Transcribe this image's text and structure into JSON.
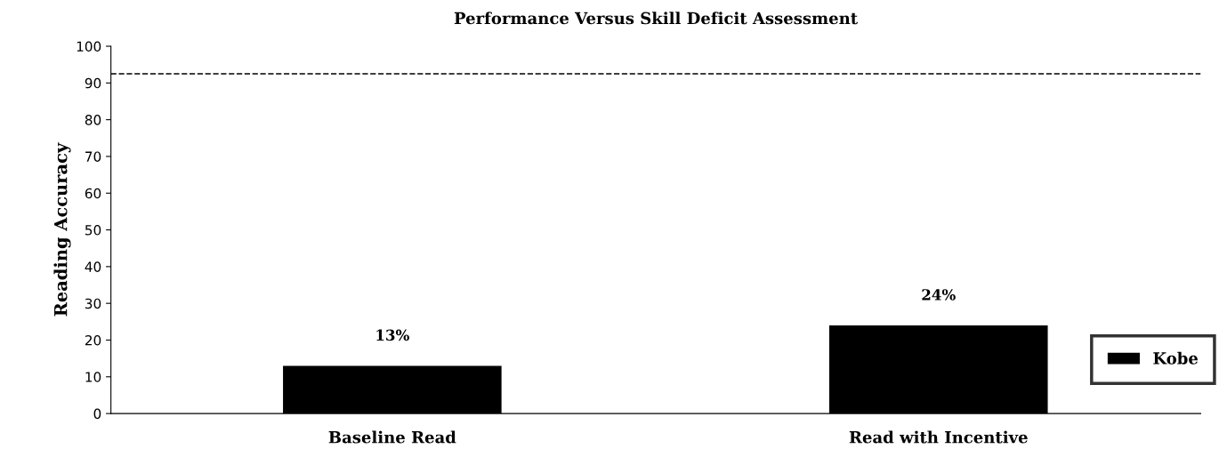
{
  "chart_data": {
    "type": "bar",
    "title": "Performance Versus Skill Deficit Assessment",
    "ylabel": "Reading Accuracy",
    "categories": [
      "Baseline Read",
      "Read with Incentive"
    ],
    "series": [
      {
        "name": "Kobe",
        "color": "#000000",
        "values": [
          13,
          24
        ],
        "value_labels": [
          "13%",
          "24%"
        ]
      }
    ],
    "ylim": [
      0,
      100
    ],
    "yticks": [
      0,
      10,
      20,
      30,
      40,
      50,
      60,
      70,
      80,
      90,
      100
    ],
    "ref_lines": [
      {
        "axis": "y",
        "value": 92.5,
        "line_style": "dashed",
        "color": "#000000"
      }
    ],
    "legend": "bottom right",
    "grid": false
  }
}
